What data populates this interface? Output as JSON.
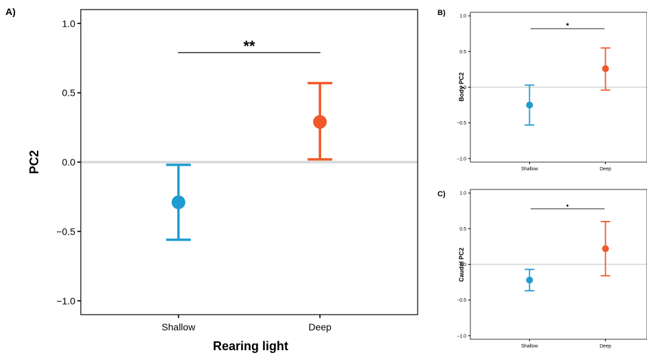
{
  "chart_data": [
    {
      "panel": "A)",
      "type": "scatter",
      "categories": [
        "Shallow",
        "Deep"
      ],
      "values": [
        -0.29,
        0.29
      ],
      "ci_low": [
        -0.56,
        0.02
      ],
      "ci_high": [
        -0.02,
        0.57
      ],
      "colors": [
        "#1f9bcf",
        "#f0582a"
      ],
      "xlabel": "Rearing light",
      "ylabel": "PC2",
      "ylim": [
        -1.1,
        1.1
      ],
      "yticks": [
        -1.0,
        -0.5,
        0.0,
        0.5,
        1.0
      ],
      "ytick_labels": [
        "−1.0",
        "−0.5",
        "0.0",
        "0.5",
        "1.0"
      ],
      "reference_line": 0.0,
      "significance": "**",
      "significance_y": 0.79
    },
    {
      "panel": "B)",
      "type": "scatter",
      "categories": [
        "Shallow",
        "Deep"
      ],
      "values": [
        -0.25,
        0.26
      ],
      "ci_low": [
        -0.53,
        -0.04
      ],
      "ci_high": [
        0.03,
        0.55
      ],
      "colors": [
        "#1f9bcf",
        "#f0582a"
      ],
      "xlabel": "",
      "ylabel": "Body PC2",
      "ylim": [
        -1.05,
        1.05
      ],
      "yticks": [
        -1.0,
        -0.5,
        0.0,
        0.5,
        1.0
      ],
      "ytick_labels": [
        "−1.0",
        "−0.5",
        "0.0",
        "0.5",
        "1.0"
      ],
      "reference_line": 0.0,
      "significance": "*",
      "significance_y": 0.82
    },
    {
      "panel": "C)",
      "type": "scatter",
      "categories": [
        "Shallow",
        "Deep"
      ],
      "values": [
        -0.22,
        0.22
      ],
      "ci_low": [
        -0.37,
        -0.16
      ],
      "ci_high": [
        -0.07,
        0.6
      ],
      "colors": [
        "#1f9bcf",
        "#f0582a"
      ],
      "xlabel": "",
      "ylabel": "Caudal PC2",
      "ylim": [
        -1.05,
        1.05
      ],
      "yticks": [
        -1.0,
        -0.5,
        0.0,
        0.5,
        1.0
      ],
      "ytick_labels": [
        "−1.0",
        "−0.5",
        "0.0",
        "0.5",
        "1.0"
      ],
      "reference_line": 0.0,
      "significance": "•",
      "significance_y": 0.78
    }
  ]
}
